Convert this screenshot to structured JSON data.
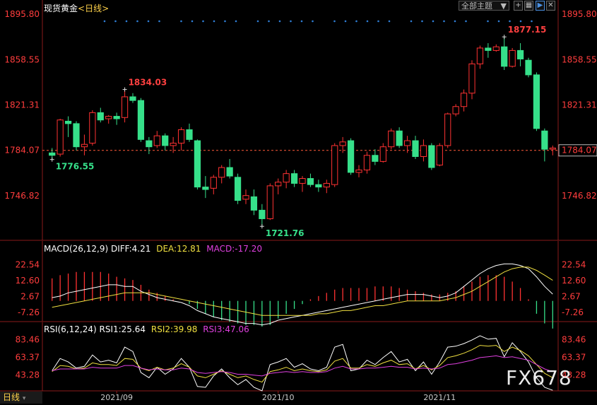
{
  "header": {
    "symbol": "现货黄金",
    "period": "<日线>",
    "theme_select": "全部主题",
    "macd_title": "MACD(26,12,9)",
    "diff": "DIFF:4.21",
    "dea": "DEA:12.81",
    "macd": "MACD:-17.20",
    "rsi_title": "RSI(6,12,24)",
    "rsi1": "RSI1:25.64",
    "rsi2": "RSI2:39.98",
    "rsi3": "RSI3:47.06"
  },
  "footer": {
    "tab": "日线"
  },
  "watermark": "FX678",
  "colors": {
    "up": "#ff3232",
    "down": "#36e08a",
    "diff": "#ffffff",
    "dea": "#f0e040",
    "rsi3": "#e040e0",
    "axis": "#ff3d3d",
    "dates": "#cccccc"
  },
  "chart_data": [
    {
      "type": "candlestick",
      "title": "现货黄金 <日线>",
      "ylim": [
        1725.0,
        1895.8
      ],
      "y_ticks": [
        "1895.80",
        "1858.55",
        "1821.31",
        "1784.07",
        "1746.82"
      ],
      "x_tick_labels": [
        "2021/09",
        "2021/10",
        "2021/11"
      ],
      "x_tick_indices": [
        8,
        28,
        48
      ],
      "current_price": 1784.07,
      "annotations": [
        {
          "text": "1834.03",
          "index": 9,
          "price": 1834.03,
          "kind": "high"
        },
        {
          "text": "1776.55",
          "index": 0,
          "price": 1776.55,
          "kind": "low"
        },
        {
          "text": "1721.76",
          "index": 26,
          "price": 1721.76,
          "kind": "low"
        },
        {
          "text": "1877.15",
          "index": 56,
          "price": 1877.15,
          "kind": "high"
        }
      ],
      "candles": [
        {
          "o": 1782,
          "h": 1786,
          "l": 1776.55,
          "c": 1780
        },
        {
          "o": 1781,
          "h": 1810,
          "l": 1779,
          "c": 1809
        },
        {
          "o": 1808,
          "h": 1812,
          "l": 1795,
          "c": 1806
        },
        {
          "o": 1806,
          "h": 1808,
          "l": 1784,
          "c": 1787
        },
        {
          "o": 1787,
          "h": 1797,
          "l": 1780,
          "c": 1789
        },
        {
          "o": 1790,
          "h": 1817,
          "l": 1788,
          "c": 1815
        },
        {
          "o": 1815,
          "h": 1819,
          "l": 1807,
          "c": 1809
        },
        {
          "o": 1810,
          "h": 1813,
          "l": 1806,
          "c": 1812
        },
        {
          "o": 1812,
          "h": 1815,
          "l": 1805,
          "c": 1810
        },
        {
          "o": 1811,
          "h": 1834.03,
          "l": 1807,
          "c": 1828
        },
        {
          "o": 1828,
          "h": 1831,
          "l": 1823,
          "c": 1825
        },
        {
          "o": 1825,
          "h": 1827,
          "l": 1791,
          "c": 1793
        },
        {
          "o": 1792,
          "h": 1795,
          "l": 1781,
          "c": 1787
        },
        {
          "o": 1788,
          "h": 1800,
          "l": 1786,
          "c": 1796
        },
        {
          "o": 1796,
          "h": 1798,
          "l": 1784,
          "c": 1788
        },
        {
          "o": 1788,
          "h": 1795,
          "l": 1782,
          "c": 1790
        },
        {
          "o": 1790,
          "h": 1803,
          "l": 1784,
          "c": 1801
        },
        {
          "o": 1801,
          "h": 1806,
          "l": 1791,
          "c": 1793
        },
        {
          "o": 1792,
          "h": 1793,
          "l": 1752,
          "c": 1754
        },
        {
          "o": 1754,
          "h": 1763,
          "l": 1745,
          "c": 1752
        },
        {
          "o": 1753,
          "h": 1764,
          "l": 1748,
          "c": 1762
        },
        {
          "o": 1762,
          "h": 1772,
          "l": 1757,
          "c": 1770
        },
        {
          "o": 1770,
          "h": 1777,
          "l": 1761,
          "c": 1763
        },
        {
          "o": 1762,
          "h": 1765,
          "l": 1740,
          "c": 1743
        },
        {
          "o": 1744,
          "h": 1752,
          "l": 1740,
          "c": 1747
        },
        {
          "o": 1746,
          "h": 1752,
          "l": 1731,
          "c": 1735
        },
        {
          "o": 1735,
          "h": 1740,
          "l": 1721.76,
          "c": 1728
        },
        {
          "o": 1728,
          "h": 1757,
          "l": 1727,
          "c": 1755
        },
        {
          "o": 1755,
          "h": 1761,
          "l": 1748,
          "c": 1758
        },
        {
          "o": 1758,
          "h": 1768,
          "l": 1753,
          "c": 1765
        },
        {
          "o": 1765,
          "h": 1768,
          "l": 1754,
          "c": 1757
        },
        {
          "o": 1757,
          "h": 1763,
          "l": 1750,
          "c": 1761
        },
        {
          "o": 1761,
          "h": 1765,
          "l": 1754,
          "c": 1756
        },
        {
          "o": 1756,
          "h": 1760,
          "l": 1750,
          "c": 1754
        },
        {
          "o": 1754,
          "h": 1760,
          "l": 1749,
          "c": 1757
        },
        {
          "o": 1756,
          "h": 1790,
          "l": 1754,
          "c": 1788
        },
        {
          "o": 1788,
          "h": 1795,
          "l": 1782,
          "c": 1791
        },
        {
          "o": 1792,
          "h": 1794,
          "l": 1764,
          "c": 1766
        },
        {
          "o": 1766,
          "h": 1772,
          "l": 1762,
          "c": 1768
        },
        {
          "o": 1768,
          "h": 1783,
          "l": 1765,
          "c": 1780
        },
        {
          "o": 1780,
          "h": 1785,
          "l": 1772,
          "c": 1775
        },
        {
          "o": 1775,
          "h": 1790,
          "l": 1774,
          "c": 1787
        },
        {
          "o": 1787,
          "h": 1802,
          "l": 1785,
          "c": 1800
        },
        {
          "o": 1800,
          "h": 1803,
          "l": 1786,
          "c": 1788
        },
        {
          "o": 1788,
          "h": 1796,
          "l": 1782,
          "c": 1792
        },
        {
          "o": 1792,
          "h": 1796,
          "l": 1777,
          "c": 1779
        },
        {
          "o": 1779,
          "h": 1793,
          "l": 1775,
          "c": 1788
        },
        {
          "o": 1788,
          "h": 1790,
          "l": 1768,
          "c": 1770
        },
        {
          "o": 1772,
          "h": 1790,
          "l": 1771,
          "c": 1788
        },
        {
          "o": 1788,
          "h": 1815,
          "l": 1786,
          "c": 1814
        },
        {
          "o": 1814,
          "h": 1822,
          "l": 1812,
          "c": 1820
        },
        {
          "o": 1820,
          "h": 1834,
          "l": 1816,
          "c": 1831
        },
        {
          "o": 1831,
          "h": 1858,
          "l": 1826,
          "c": 1855
        },
        {
          "o": 1855,
          "h": 1870,
          "l": 1851,
          "c": 1868
        },
        {
          "o": 1868,
          "h": 1872,
          "l": 1860,
          "c": 1866
        },
        {
          "o": 1866,
          "h": 1871,
          "l": 1865,
          "c": 1869
        },
        {
          "o": 1869,
          "h": 1877.15,
          "l": 1850,
          "c": 1853
        },
        {
          "o": 1853,
          "h": 1868,
          "l": 1852,
          "c": 1866
        },
        {
          "o": 1866,
          "h": 1872,
          "l": 1853,
          "c": 1859
        },
        {
          "o": 1858,
          "h": 1860,
          "l": 1844,
          "c": 1846
        },
        {
          "o": 1846,
          "h": 1848,
          "l": 1800,
          "c": 1802
        },
        {
          "o": 1800,
          "h": 1802,
          "l": 1775,
          "c": 1785
        },
        {
          "o": 1785,
          "h": 1788,
          "l": 1780,
          "c": 1786
        }
      ],
      "dots": "blue dotted row at top"
    },
    {
      "type": "macd",
      "title": "MACD(26,12,9)",
      "ylim": [
        -12,
        28
      ],
      "y_ticks": [
        "22.54",
        "12.60",
        "2.67",
        "-7.26"
      ],
      "histogram": [
        14,
        16,
        17,
        18,
        18,
        18,
        18,
        17,
        15,
        14,
        13,
        10,
        7,
        5,
        3,
        1,
        0,
        -2,
        -5,
        -8,
        -10,
        -12,
        -13,
        -14,
        -15,
        -15,
        -16,
        -15,
        -11,
        -8,
        -5,
        -2,
        1,
        3,
        5,
        7,
        8,
        8,
        8,
        8,
        9,
        9,
        9,
        8,
        7,
        6,
        5,
        4,
        4,
        5,
        6,
        9,
        12,
        15,
        16,
        16,
        15,
        12,
        8,
        1,
        -8,
        -14,
        -17.2
      ],
      "diff": [
        2,
        3,
        5,
        6,
        7,
        8,
        9,
        10,
        10,
        9,
        9,
        6,
        4,
        2,
        1,
        0,
        -1,
        -3,
        -6,
        -8,
        -10,
        -11,
        -12,
        -13,
        -14,
        -14,
        -15,
        -14,
        -12,
        -11,
        -10,
        -9,
        -8,
        -7,
        -6,
        -5,
        -4,
        -3,
        -2,
        -1,
        0,
        1,
        2,
        3,
        4,
        4,
        4,
        3,
        2,
        3,
        5,
        9,
        13,
        17,
        20,
        22,
        23,
        23,
        22,
        20,
        15,
        9,
        4.21
      ],
      "dea": [
        -4,
        -3,
        -2,
        -1,
        0,
        1,
        2,
        3,
        4,
        5,
        5,
        5,
        5,
        4,
        3,
        2,
        1,
        0,
        -1,
        -2,
        -3,
        -4,
        -5,
        -6,
        -7,
        -8,
        -9,
        -9,
        -9,
        -9,
        -9,
        -9,
        -9,
        -8,
        -8,
        -7,
        -6,
        -6,
        -5,
        -4,
        -3,
        -3,
        -2,
        -1,
        0,
        0,
        0,
        0,
        0,
        1,
        2,
        4,
        6,
        9,
        12,
        15,
        18,
        20,
        21,
        21,
        19,
        16,
        12.81
      ]
    },
    {
      "type": "rsi",
      "title": "RSI(6,12,24)",
      "ylim": [
        25,
        92
      ],
      "y_ticks": [
        "83.46",
        "63.37",
        "43.28"
      ],
      "rsi1": [
        48,
        62,
        58,
        51,
        53,
        66,
        58,
        60,
        57,
        75,
        70,
        46,
        40,
        52,
        44,
        50,
        62,
        52,
        30,
        29,
        42,
        50,
        40,
        32,
        38,
        29,
        25,
        55,
        58,
        62,
        52,
        56,
        50,
        48,
        52,
        75,
        78,
        48,
        50,
        60,
        55,
        63,
        70,
        58,
        61,
        48,
        58,
        44,
        58,
        75,
        76,
        79,
        83,
        88,
        84,
        85,
        64,
        80,
        70,
        58,
        40,
        29,
        25.64
      ],
      "rsi2": [
        47,
        54,
        53,
        50,
        51,
        57,
        55,
        55,
        54,
        62,
        61,
        51,
        48,
        52,
        49,
        51,
        56,
        52,
        42,
        40,
        44,
        48,
        44,
        40,
        42,
        38,
        35,
        47,
        49,
        52,
        48,
        50,
        48,
        47,
        49,
        59,
        62,
        51,
        51,
        55,
        53,
        57,
        60,
        55,
        56,
        50,
        54,
        49,
        54,
        63,
        65,
        68,
        72,
        77,
        76,
        77,
        70,
        75,
        71,
        65,
        55,
        45,
        39.98
      ],
      "rsi3": [
        48,
        50,
        50,
        50,
        50,
        52,
        51,
        51,
        51,
        54,
        54,
        51,
        49,
        50,
        49,
        49,
        51,
        50,
        46,
        45,
        46,
        47,
        46,
        44,
        44,
        43,
        42,
        45,
        46,
        47,
        46,
        47,
        46,
        46,
        47,
        51,
        53,
        50,
        50,
        51,
        51,
        52,
        53,
        52,
        52,
        50,
        51,
        50,
        51,
        55,
        56,
        58,
        60,
        63,
        64,
        65,
        63,
        64,
        62,
        60,
        55,
        50,
        47.06
      ]
    }
  ]
}
